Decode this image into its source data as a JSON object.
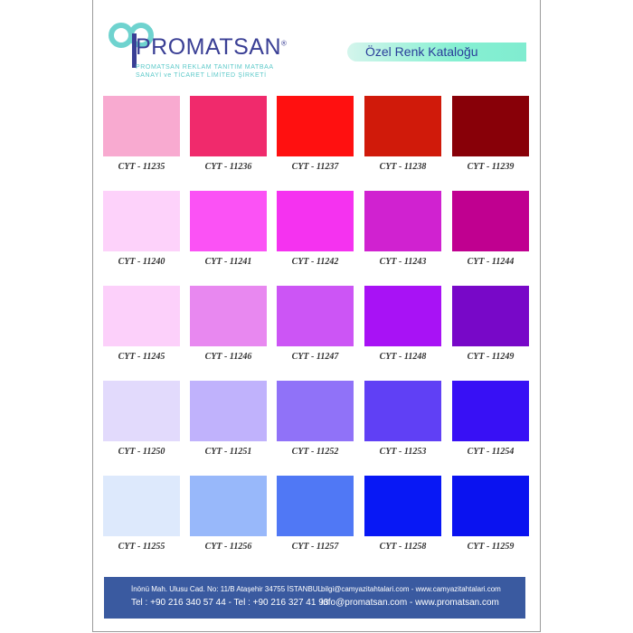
{
  "header": {
    "brand": "PROMATSAN",
    "registered": "®",
    "subtitle_line1": "PROMATSAN REKLAM TANITIM MATBAA",
    "subtitle_line2": "SANAYİ ve TİCARET LİMİTED ŞİRKETİ",
    "catalog_title": "Özel Renk Kataloğu"
  },
  "swatches": [
    {
      "code": "CYT - 11235",
      "color": "#f8aad0"
    },
    {
      "code": "CYT - 11236",
      "color": "#f02a6c"
    },
    {
      "code": "CYT - 11237",
      "color": "#ff1010"
    },
    {
      "code": "CYT - 11238",
      "color": "#d01a0a"
    },
    {
      "code": "CYT - 11239",
      "color": "#880008"
    },
    {
      "code": "CYT - 11240",
      "color": "#fdd2fa"
    },
    {
      "code": "CYT - 11241",
      "color": "#fb52f5"
    },
    {
      "code": "CYT - 11242",
      "color": "#f532f0"
    },
    {
      "code": "CYT - 11243",
      "color": "#d022d0"
    },
    {
      "code": "CYT - 11244",
      "color": "#c00090"
    },
    {
      "code": "CYT - 11245",
      "color": "#fcd0fa"
    },
    {
      "code": "CYT - 11246",
      "color": "#e888f0"
    },
    {
      "code": "CYT - 11247",
      "color": "#cc55f5"
    },
    {
      "code": "CYT - 11248",
      "color": "#a812f5"
    },
    {
      "code": "CYT - 11249",
      "color": "#7808c8"
    },
    {
      "code": "CYT - 11250",
      "color": "#e2dafc"
    },
    {
      "code": "CYT - 11251",
      "color": "#c0b2fc"
    },
    {
      "code": "CYT - 11252",
      "color": "#9072f8"
    },
    {
      "code": "CYT - 11253",
      "color": "#6040f5"
    },
    {
      "code": "CYT - 11254",
      "color": "#3810f5"
    },
    {
      "code": "CYT - 11255",
      "color": "#dde9fc"
    },
    {
      "code": "CYT - 11256",
      "color": "#98b8fa"
    },
    {
      "code": "CYT - 11257",
      "color": "#5078f5"
    },
    {
      "code": "CYT - 11258",
      "color": "#0818f5"
    },
    {
      "code": "CYT - 11259",
      "color": "#0a12f0"
    }
  ],
  "footer": {
    "address": "İnönü Mah. Ulusu Cad. No: 11/B  Ataşehir 34755 İSTANBUL",
    "phones": "Tel : +90 216 340 57 44 -  Tel : +90 216 327 41 93",
    "web1": "bilgi@camyazitahtalari.com - www.camyazitahtalari.com",
    "web2": "info@promatsan.com - www.promatsan.com"
  }
}
